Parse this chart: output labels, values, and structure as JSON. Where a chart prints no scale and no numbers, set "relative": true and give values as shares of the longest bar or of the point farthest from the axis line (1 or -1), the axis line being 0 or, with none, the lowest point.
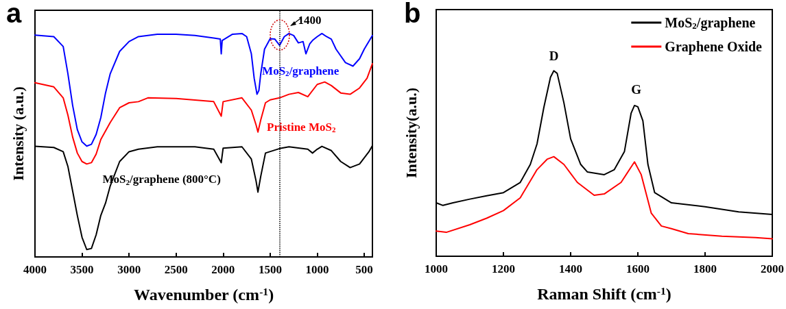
{
  "chart_data": [
    {
      "type": "line",
      "title": "a",
      "xlabel": "Wavenumber (cm$^{-1}$)",
      "ylabel": "Intensity (a.u.)",
      "relative": true,
      "xlim": [
        4000,
        413
      ],
      "xticks": [
        4000,
        3500,
        3000,
        2500,
        2000,
        1500,
        1000,
        500
      ],
      "grid": false,
      "legend": false,
      "marker": "none",
      "line_style": "solid",
      "ref_lines": [
        {
          "axis": "x",
          "value": 1400,
          "label": "1400",
          "line_style": "dotted",
          "color": "#000000"
        }
      ],
      "series": [
        {
          "name": "MoS$_{2}$/graphene",
          "color": "#0000ff",
          "x": [
            4000,
            3800,
            3700,
            3650,
            3600,
            3550,
            3500,
            3450,
            3400,
            3350,
            3300,
            3250,
            3200,
            3100,
            3000,
            2900,
            2700,
            2500,
            2300,
            2100,
            2030,
            2020,
            2010,
            1900,
            1800,
            1750,
            1700,
            1670,
            1640,
            1620,
            1600,
            1560,
            1500,
            1450,
            1400,
            1350,
            1300,
            1250,
            1200,
            1150,
            1120,
            1080,
            1050,
            1000,
            950,
            900,
            850,
            800,
            700,
            620,
            550,
            500,
            413
          ],
          "values": [
            0.993,
            0.986,
            0.942,
            0.82,
            0.679,
            0.57,
            0.515,
            0.496,
            0.504,
            0.548,
            0.624,
            0.734,
            0.82,
            0.92,
            0.964,
            0.986,
            0.997,
            0.997,
            0.991,
            0.98,
            0.975,
            0.909,
            0.969,
            0.997,
            1.0,
            0.986,
            0.909,
            0.8,
            0.728,
            0.745,
            0.82,
            0.93,
            0.977,
            0.975,
            0.947,
            0.986,
            1.0,
            0.991,
            0.958,
            0.964,
            0.909,
            0.953,
            0.969,
            0.986,
            1.0,
            0.986,
            0.975,
            0.93,
            0.87,
            0.854,
            0.887,
            0.93,
            0.991
          ]
        },
        {
          "name": "Pristine MoS$_{2}$",
          "color": "#ff0000",
          "x": [
            4000,
            3800,
            3700,
            3650,
            3600,
            3550,
            3500,
            3450,
            3400,
            3350,
            3300,
            3200,
            3100,
            3000,
            2900,
            2800,
            2500,
            2100,
            2020,
            2000,
            1800,
            1700,
            1650,
            1630,
            1600,
            1550,
            1500,
            1400,
            1300,
            1200,
            1100,
            1000,
            920,
            850,
            750,
            650,
            550,
            470,
            413
          ],
          "values": [
            0.78,
            0.761,
            0.712,
            0.635,
            0.537,
            0.465,
            0.427,
            0.416,
            0.422,
            0.46,
            0.526,
            0.602,
            0.668,
            0.69,
            0.695,
            0.712,
            0.709,
            0.695,
            0.63,
            0.695,
            0.712,
            0.657,
            0.591,
            0.559,
            0.613,
            0.69,
            0.703,
            0.712,
            0.728,
            0.736,
            0.717,
            0.772,
            0.783,
            0.767,
            0.734,
            0.728,
            0.756,
            0.8,
            0.865
          ]
        },
        {
          "name": "MoS$_{2}$/graphene (800°C)",
          "color": "#000000",
          "x": [
            4000,
            3800,
            3700,
            3650,
            3600,
            3550,
            3500,
            3450,
            3400,
            3350,
            3300,
            3250,
            3200,
            3100,
            3000,
            2900,
            2700,
            2300,
            2100,
            2020,
            2000,
            1800,
            1700,
            1650,
            1630,
            1600,
            1550,
            1400,
            1300,
            1100,
            1050,
            1000,
            950,
            850,
            750,
            650,
            550,
            450,
            413
          ],
          "values": [
            0.495,
            0.49,
            0.471,
            0.405,
            0.296,
            0.186,
            0.088,
            0.033,
            0.038,
            0.099,
            0.186,
            0.241,
            0.318,
            0.427,
            0.471,
            0.482,
            0.493,
            0.493,
            0.482,
            0.422,
            0.487,
            0.493,
            0.438,
            0.34,
            0.29,
            0.361,
            0.465,
            0.485,
            0.493,
            0.482,
            0.465,
            0.482,
            0.495,
            0.476,
            0.427,
            0.4,
            0.416,
            0.471,
            0.498
          ]
        }
      ]
    },
    {
      "type": "line",
      "title": "b",
      "xlabel": "Raman Shift (cm$^{-1}$)",
      "ylabel": "Intensity(a.u.)",
      "relative": true,
      "xlim": [
        1000,
        2000
      ],
      "xticks": [
        1000,
        1200,
        1400,
        1600,
        1800,
        2000
      ],
      "grid": false,
      "legend": "top right",
      "marker": "none",
      "line_style": "solid",
      "annotations": [
        {
          "text": "D",
          "x": 1350,
          "y": 0.993
        },
        {
          "text": "G",
          "x": 1595,
          "y": 0.813
        }
      ],
      "series": [
        {
          "name": "MoS$_{2}$/graphene",
          "color": "#000000",
          "x": [
            1000,
            1020,
            1050,
            1100,
            1150,
            1200,
            1250,
            1280,
            1300,
            1320,
            1340,
            1350,
            1360,
            1380,
            1400,
            1430,
            1450,
            1500,
            1530,
            1560,
            1580,
            1590,
            1600,
            1615,
            1630,
            1650,
            1700,
            1800,
            1900,
            2000
          ],
          "values": [
            0.288,
            0.274,
            0.288,
            0.308,
            0.326,
            0.343,
            0.398,
            0.495,
            0.606,
            0.8,
            0.965,
            1.0,
            0.986,
            0.827,
            0.633,
            0.495,
            0.454,
            0.44,
            0.467,
            0.564,
            0.772,
            0.813,
            0.806,
            0.73,
            0.495,
            0.343,
            0.288,
            0.267,
            0.239,
            0.225
          ]
        },
        {
          "name": "Graphene Oxide",
          "color": "#ff0000",
          "x": [
            1000,
            1030,
            1100,
            1150,
            1200,
            1250,
            1300,
            1330,
            1350,
            1380,
            1420,
            1470,
            1500,
            1550,
            1590,
            1610,
            1640,
            1670,
            1700,
            1750,
            1850,
            1950,
            2000
          ],
          "values": [
            0.136,
            0.129,
            0.17,
            0.205,
            0.246,
            0.315,
            0.467,
            0.523,
            0.537,
            0.495,
            0.398,
            0.329,
            0.336,
            0.398,
            0.509,
            0.44,
            0.232,
            0.163,
            0.149,
            0.122,
            0.108,
            0.101,
            0.094
          ]
        }
      ]
    }
  ]
}
